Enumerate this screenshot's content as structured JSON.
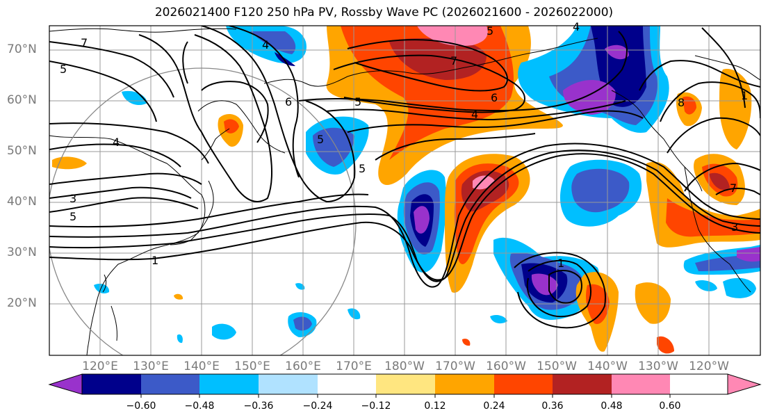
{
  "title": "2026021400 F120 250 hPa PV, Rossby Wave PC (2026021600 - 2026022000)",
  "latitude_labels": [
    "70°N",
    "60°N",
    "50°N",
    "40°N",
    "30°N",
    "20°N"
  ],
  "longitude_labels": [
    "120°E",
    "130°E",
    "140°E",
    "150°E",
    "160°E",
    "170°E",
    "180°W",
    "170°W",
    "160°W",
    "150°W",
    "140°W",
    "130°W",
    "120°W"
  ],
  "colorbar": {
    "ticks": [
      "−0.60",
      "−0.48",
      "−0.36",
      "−0.24",
      "−0.12",
      "0.12",
      "0.24",
      "0.36",
      "0.48",
      "0.60"
    ],
    "colors": [
      "#9932cc",
      "#00008b",
      "#3c5ac8",
      "#00bfff",
      "#b0e2ff",
      "#ffffff",
      "#ffe680",
      "#ffa500",
      "#ff4500",
      "#b22222",
      "#ff88b4"
    ]
  },
  "contour_labels": [
    "7",
    "5",
    "6",
    "5",
    "4",
    "3",
    "5",
    "1",
    "4",
    "6",
    "7",
    "5",
    "4",
    "5",
    "5",
    "4",
    "1",
    "7",
    "3",
    "8",
    "1"
  ]
}
